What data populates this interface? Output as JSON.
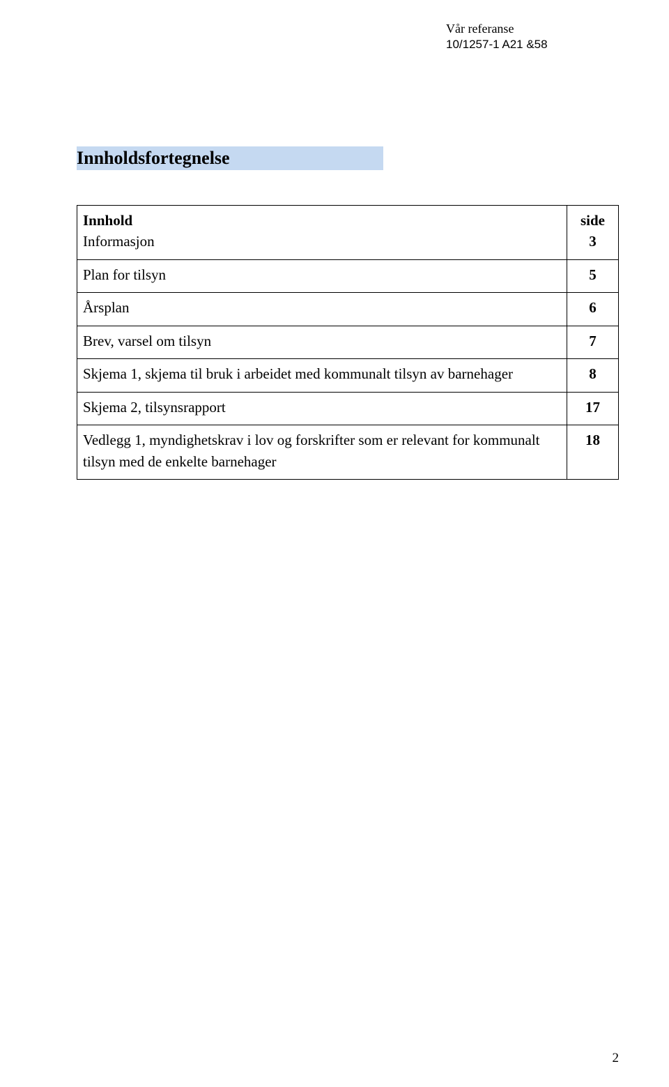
{
  "reference": {
    "label": "Vår referanse",
    "value": "10/1257-1 A21 &58"
  },
  "heading": "Innholdsfortegnelse",
  "heading_bg_color": "#c5d9f1",
  "table": {
    "header": {
      "left": "Innhold",
      "right": "side"
    },
    "rows": [
      {
        "text": "Informasjon",
        "page": "3"
      },
      {
        "text": "Plan for tilsyn",
        "page": "5"
      },
      {
        "text": "Årsplan",
        "page": "6"
      },
      {
        "text": "Brev, varsel om tilsyn",
        "page": "7"
      },
      {
        "text": "Skjema 1, skjema til bruk i arbeidet med kommunalt tilsyn av barnehager",
        "page": "8"
      },
      {
        "text": "Skjema 2, tilsynsrapport",
        "page": "17"
      },
      {
        "text": "Vedlegg 1, myndighetskrav i lov og forskrifter som er relevant for kommunalt tilsyn med de enkelte barnehager",
        "page": "18"
      }
    ]
  },
  "page_number": "2",
  "colors": {
    "page_bg": "#ffffff",
    "text": "#000000",
    "table_border": "#000000"
  },
  "fonts": {
    "body": "Times New Roman",
    "reference_value": "Arial",
    "heading_size_pt": 20,
    "body_size_pt": 16
  }
}
